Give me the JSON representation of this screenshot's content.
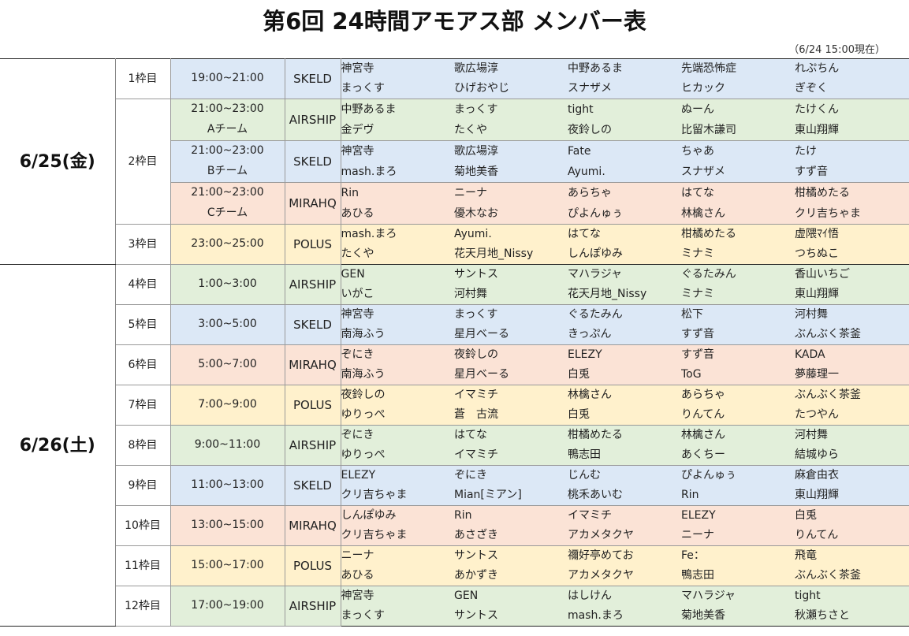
{
  "title": "第6回 24時間アモアス部 メンバー表",
  "as_of": "（6/24 15:00現在）",
  "colors": {
    "SKELD": "#dce8f6",
    "AIRSHIP": "#e2efda",
    "MIRAHQ": "#fbe3d6",
    "POLUS": "#fff1cc"
  },
  "days": [
    {
      "date": "6/25(金)",
      "groups": [
        {
          "slot": "1枠目",
          "sessions": [
            {
              "time": [
                "19:00~21:00"
              ],
              "map": "SKELD",
              "names": [
                [
                  "神宮寺",
                  "歌広場淳",
                  "中野あるま",
                  "先端恐怖症",
                  "れぷちん"
                ],
                [
                  "まっくす",
                  "ひげおやじ",
                  "スナザメ",
                  "ヒカック",
                  "ぎぞく"
                ]
              ]
            }
          ]
        },
        {
          "slot": "2枠目",
          "sessions": [
            {
              "time": [
                "21:00~23:00",
                "Aチーム"
              ],
              "map": "AIRSHIP",
              "names": [
                [
                  "中野あるま",
                  "まっくす",
                  "tight",
                  "ぬーん",
                  "たけくん"
                ],
                [
                  "金デヴ",
                  "たくや",
                  "夜鈴しの",
                  "比留木謙司",
                  "東山翔輝"
                ]
              ]
            },
            {
              "time": [
                "21:00~23:00",
                "Bチーム"
              ],
              "map": "SKELD",
              "names": [
                [
                  "神宮寺",
                  "歌広場淳",
                  "Fate",
                  "ちゃあ",
                  "たけ"
                ],
                [
                  "mash.まろ",
                  "菊地美香",
                  "Ayumi.",
                  "スナザメ",
                  "すず音"
                ]
              ]
            },
            {
              "time": [
                "21:00~23:00",
                "Cチーム"
              ],
              "map": "MIRAHQ",
              "names": [
                [
                  "Rin",
                  "ニーナ",
                  "あらちゃ",
                  "はてな",
                  "柑橘めたる"
                ],
                [
                  "あひる",
                  "優木なお",
                  "ぴよんゅぅ",
                  "林檎さん",
                  "クリ吉ちゃま"
                ]
              ]
            }
          ]
        },
        {
          "slot": "3枠目",
          "sessions": [
            {
              "time": [
                "23:00~25:00"
              ],
              "map": "POLUS",
              "names": [
                [
                  "mash.まろ",
                  "Ayumi.",
                  "はてな",
                  "柑橘めたる",
                  "虚隈ﾏｲ悟"
                ],
                [
                  "たくや",
                  "花天月地_Nissy",
                  "しんぽゆみ",
                  "ミナミ",
                  "つちぬこ"
                ]
              ]
            }
          ]
        }
      ]
    },
    {
      "date": "6/26(土)",
      "groups": [
        {
          "slot": "4枠目",
          "sessions": [
            {
              "time": [
                "1:00~3:00"
              ],
              "map": "AIRSHIP",
              "names": [
                [
                  "GEN",
                  "サントス",
                  "マハラジャ",
                  "ぐるたみん",
                  "香山いちご"
                ],
                [
                  "いがこ",
                  "河村舞",
                  "花天月地_Nissy",
                  "ミナミ",
                  "東山翔輝"
                ]
              ]
            }
          ]
        },
        {
          "slot": "5枠目",
          "sessions": [
            {
              "time": [
                "3:00~5:00"
              ],
              "map": "SKELD",
              "names": [
                [
                  "神宮寺",
                  "まっくす",
                  "ぐるたみん",
                  "松下",
                  "河村舞"
                ],
                [
                  "南海ふう",
                  "星月ベーる",
                  "きっぷん",
                  "すず音",
                  "ぶんぶく茶釜"
                ]
              ]
            }
          ]
        },
        {
          "slot": "6枠目",
          "sessions": [
            {
              "time": [
                "5:00~7:00"
              ],
              "map": "MIRAHQ",
              "names": [
                [
                  "ぞにき",
                  "夜鈴しの",
                  "ELEZY",
                  "すず音",
                  "KADA"
                ],
                [
                  "南海ふう",
                  "星月ベーる",
                  "白兎",
                  "ToG",
                  "夢藤理一"
                ]
              ]
            }
          ]
        },
        {
          "slot": "7枠目",
          "sessions": [
            {
              "time": [
                "7:00~9:00"
              ],
              "map": "POLUS",
              "names": [
                [
                  "夜鈴しの",
                  "イマミチ",
                  "林檎さん",
                  "あらちゃ",
                  "ぶんぶく茶釜"
                ],
                [
                  "ゆりっぺ",
                  "蒼　古流",
                  "白兎",
                  "りんてん",
                  "たつやん"
                ]
              ]
            }
          ]
        },
        {
          "slot": "8枠目",
          "sessions": [
            {
              "time": [
                "9:00~11:00"
              ],
              "map": "AIRSHIP",
              "names": [
                [
                  "ぞにき",
                  "はてな",
                  "柑橘めたる",
                  "林檎さん",
                  "河村舞"
                ],
                [
                  "ゆりっぺ",
                  "イマミチ",
                  "鴨志田",
                  "あくちー",
                  "結城ゆら"
                ]
              ]
            }
          ]
        },
        {
          "slot": "9枠目",
          "sessions": [
            {
              "time": [
                "11:00~13:00"
              ],
              "map": "SKELD",
              "names": [
                [
                  "ELEZY",
                  "ぞにき",
                  "じんむ",
                  "ぴよんゅぅ",
                  "麻倉由衣"
                ],
                [
                  "クリ吉ちゃま",
                  "Mian[ミアン]",
                  "桃禾あいむ",
                  "Rin",
                  "東山翔輝"
                ]
              ]
            }
          ]
        },
        {
          "slot": "10枠目",
          "sessions": [
            {
              "time": [
                "13:00~15:00"
              ],
              "map": "MIRAHQ",
              "names": [
                [
                  "しんぽゆみ",
                  "Rin",
                  "イマミチ",
                  "ELEZY",
                  "白兎"
                ],
                [
                  "クリ吉ちゃま",
                  "あさざき",
                  "アカメタクヤ",
                  "ニーナ",
                  "りんてん"
                ]
              ]
            }
          ]
        },
        {
          "slot": "11枠目",
          "sessions": [
            {
              "time": [
                "15:00~17:00"
              ],
              "map": "POLUS",
              "names": [
                [
                  "ニーナ",
                  "サントス",
                  "禰好亭めてお",
                  "Fe：",
                  "飛竜"
                ],
                [
                  "あひる",
                  "あかずき",
                  "アカメタクヤ",
                  "鴨志田",
                  "ぶんぶく茶釜"
                ]
              ]
            }
          ]
        },
        {
          "slot": "12枠目",
          "sessions": [
            {
              "time": [
                "17:00~19:00"
              ],
              "map": "AIRSHIP",
              "names": [
                [
                  "神宮寺",
                  "GEN",
                  "はしけん",
                  "マハラジャ",
                  "tight"
                ],
                [
                  "まっくす",
                  "サントス",
                  "mash.まろ",
                  "菊地美香",
                  "秋瀬ちさと"
                ]
              ]
            }
          ]
        }
      ]
    }
  ]
}
